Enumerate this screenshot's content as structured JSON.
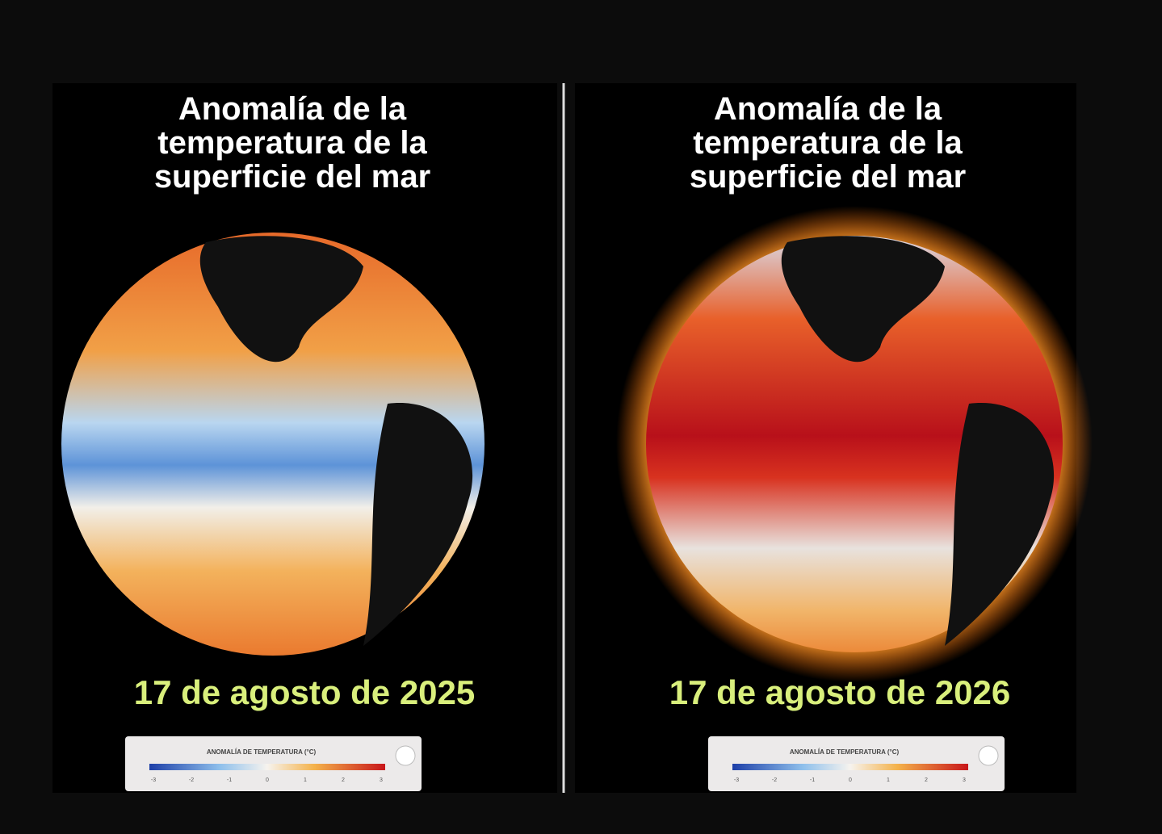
{
  "panels": [
    {
      "title_lines": [
        "Anomalía de la",
        "temperatura de la",
        "superficie del mar"
      ],
      "date": "17 de agosto de 2025",
      "legend": {
        "title": "ANOMALÍA DE TEMPERATURA (°C)",
        "ticks": [
          "-3",
          "-2",
          "-1",
          "0",
          "1",
          "2",
          "3"
        ]
      }
    },
    {
      "title_lines": [
        "Anomalía de la",
        "temperatura de la",
        "superficie del mar"
      ],
      "date": "17 de agosto de 2026",
      "legend": {
        "title": "ANOMALÍA DE TEMPERATURA (°C)",
        "ticks": [
          "-3",
          "-2",
          "-1",
          "0",
          "1",
          "2",
          "3"
        ]
      }
    }
  ]
}
